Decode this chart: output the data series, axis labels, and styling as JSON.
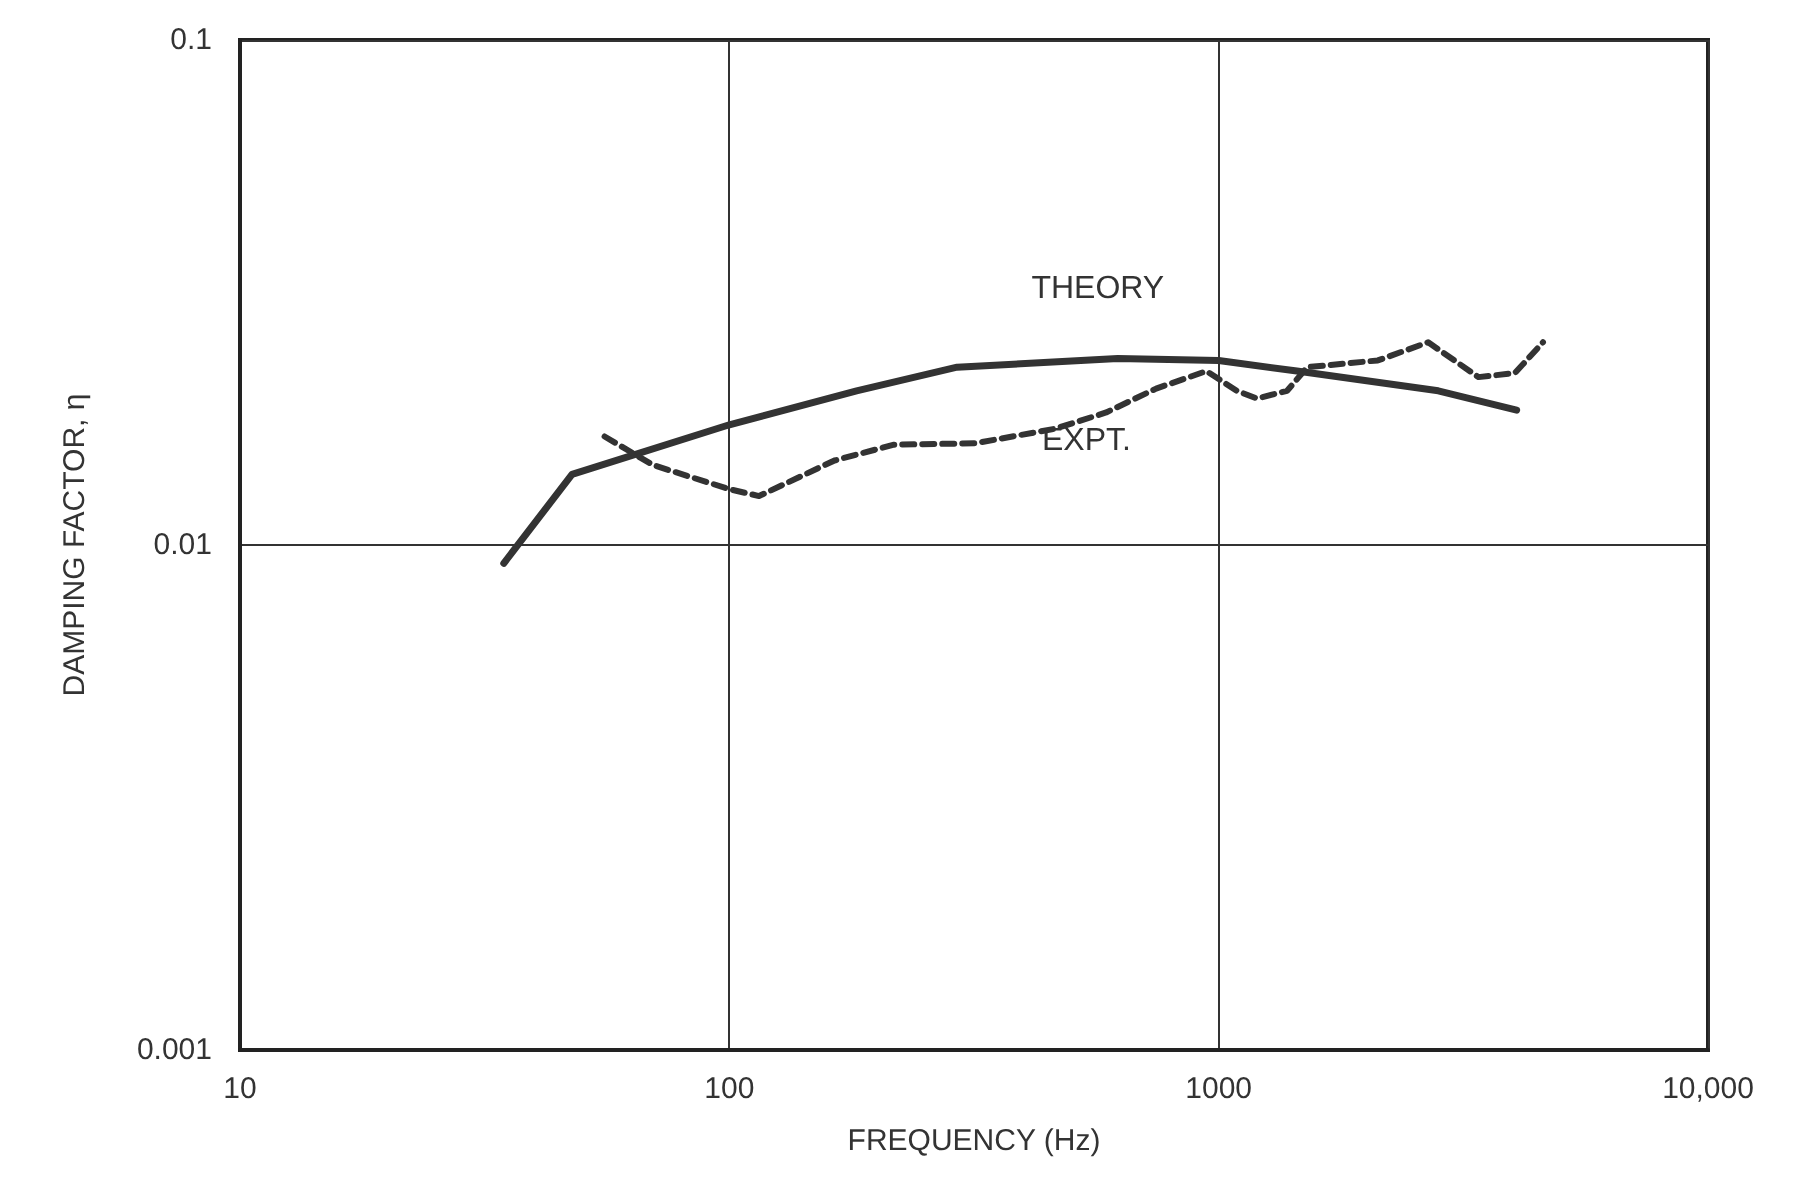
{
  "chart_data": {
    "type": "line",
    "xlabel": "FREQUENCY (Hz)",
    "ylabel": "DAMPING FACTOR, η",
    "log": "xy",
    "grid": true,
    "legend": false,
    "marker": "none",
    "xlim": [
      10,
      10000
    ],
    "xticks": [
      10,
      100,
      1000,
      {
        "value": 10000,
        "label": "10,000"
      }
    ],
    "ylim": [
      0.001,
      0.1
    ],
    "yticks": [
      0.001,
      0.01,
      0.1
    ],
    "series": [
      {
        "name": "THEORY",
        "color": "#333333",
        "line_style": "solid",
        "x": [
          34.6,
          47.7,
          100,
          182,
          292,
          622,
          1000,
          1445,
          2810,
          4064
        ],
        "values": [
          0.0092,
          0.0138,
          0.0173,
          0.0202,
          0.0225,
          0.0234,
          0.0232,
          0.0221,
          0.0202,
          0.0185
        ]
      },
      {
        "name": "EXPT.",
        "color": "#333333",
        "line_style": "dashed",
        "x": [
          55.6,
          69.8,
          100,
          115,
          164,
          217,
          318,
          464,
          589,
          745,
          944,
          1089,
          1197,
          1380,
          1517,
          2114,
          2680,
          3395,
          4030,
          4600
        ],
        "values": [
          0.0164,
          0.0144,
          0.0129,
          0.0125,
          0.0147,
          0.0158,
          0.0159,
          0.017,
          0.0183,
          0.0204,
          0.0221,
          0.0202,
          0.0195,
          0.0202,
          0.0225,
          0.0232,
          0.0252,
          0.0215,
          0.0219,
          0.0252
        ]
      }
    ]
  }
}
